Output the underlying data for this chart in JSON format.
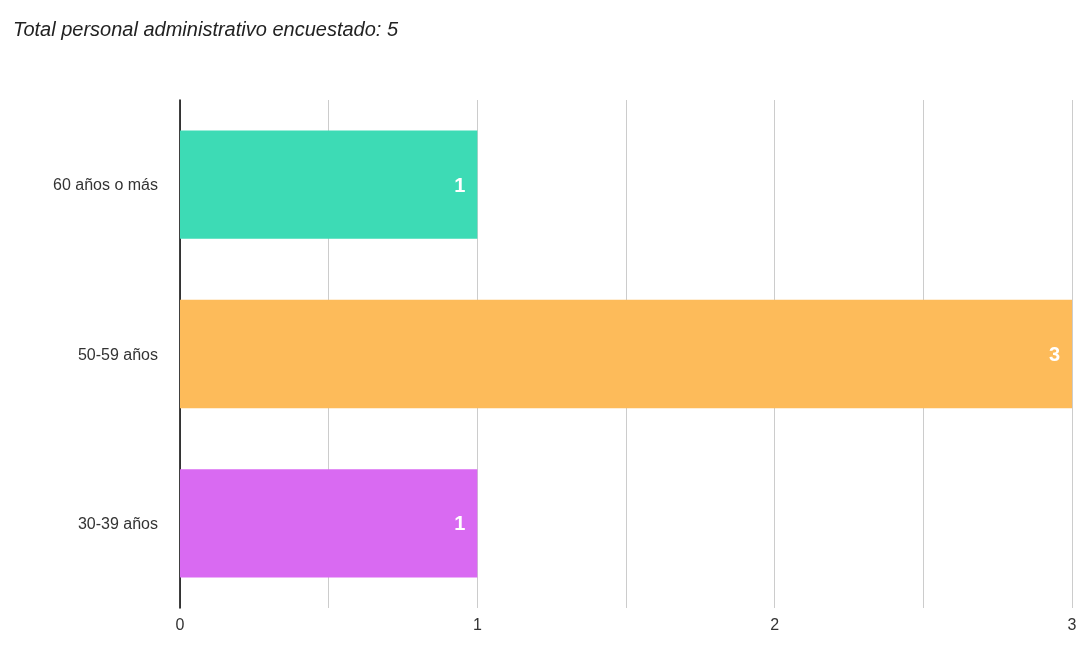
{
  "chart_data": {
    "type": "bar",
    "orientation": "horizontal",
    "title": "Total personal administrativo encuestado: 5",
    "categories": [
      "60 años o más",
      "50-59 años",
      "30-39 años"
    ],
    "values": [
      1,
      3,
      1
    ],
    "colors": [
      "#3ddbb5",
      "#fdbb5a",
      "#d96af2"
    ],
    "xlim": [
      0,
      3
    ],
    "xticks": [
      0,
      1,
      2,
      3
    ],
    "grid": "x",
    "data_labels": true
  }
}
